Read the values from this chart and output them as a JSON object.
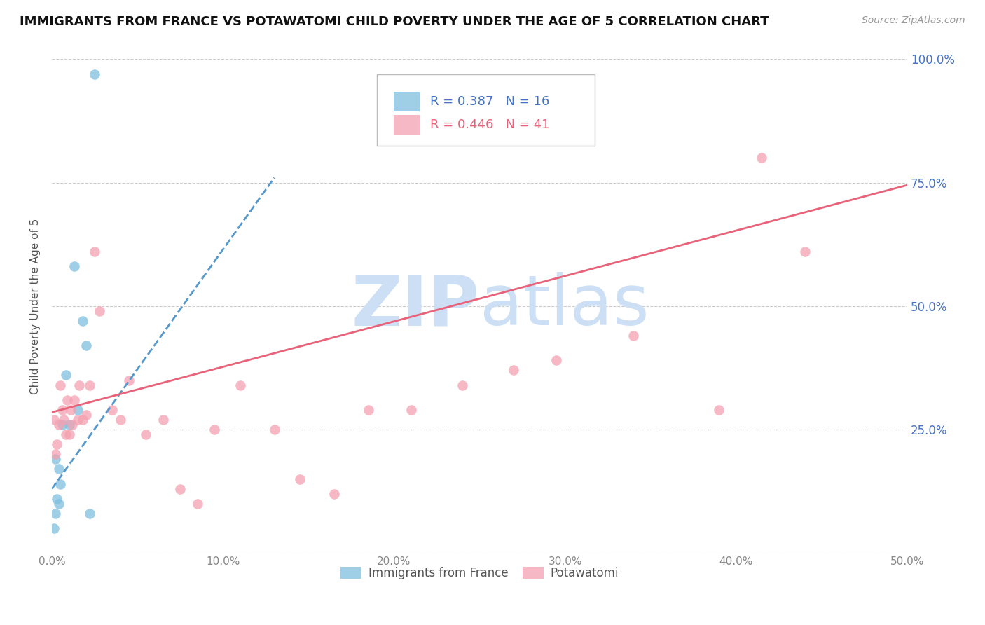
{
  "title": "IMMIGRANTS FROM FRANCE VS POTAWATOMI CHILD POVERTY UNDER THE AGE OF 5 CORRELATION CHART",
  "source": "Source: ZipAtlas.com",
  "ylabel": "Child Poverty Under the Age of 5",
  "xlim": [
    0.0,
    0.5
  ],
  "ylim": [
    0.0,
    1.0
  ],
  "xticks": [
    0.0,
    0.1,
    0.2,
    0.3,
    0.4,
    0.5
  ],
  "xtick_labels": [
    "0.0%",
    "10.0%",
    "20.0%",
    "30.0%",
    "40.0%",
    "50.0%"
  ],
  "yticks": [
    0.0,
    0.25,
    0.5,
    0.75,
    1.0
  ],
  "ytick_labels_right": [
    "",
    "25.0%",
    "50.0%",
    "75.0%",
    "100.0%"
  ],
  "blue_color": "#7fbfdf",
  "pink_color": "#f4a0b0",
  "blue_line_color": "#5599cc",
  "pink_line_color": "#e8637a",
  "right_axis_color": "#4472c4",
  "legend_R_blue": "0.387",
  "legend_N_blue": "16",
  "legend_R_pink": "0.446",
  "legend_N_pink": "41",
  "legend_label_blue": "Immigrants from France",
  "legend_label_pink": "Potawatomi",
  "blue_scatter_x": [
    0.025,
    0.001,
    0.004,
    0.003,
    0.002,
    0.006,
    0.005,
    0.013,
    0.018,
    0.008,
    0.01,
    0.015,
    0.02,
    0.002,
    0.004,
    0.022
  ],
  "blue_scatter_y": [
    0.97,
    0.05,
    0.17,
    0.11,
    0.19,
    0.26,
    0.14,
    0.58,
    0.47,
    0.36,
    0.26,
    0.29,
    0.42,
    0.08,
    0.1,
    0.08
  ],
  "pink_scatter_x": [
    0.001,
    0.002,
    0.003,
    0.004,
    0.005,
    0.006,
    0.007,
    0.008,
    0.009,
    0.01,
    0.011,
    0.012,
    0.013,
    0.015,
    0.016,
    0.018,
    0.02,
    0.022,
    0.025,
    0.028,
    0.035,
    0.04,
    0.045,
    0.055,
    0.065,
    0.075,
    0.085,
    0.095,
    0.11,
    0.13,
    0.145,
    0.165,
    0.185,
    0.21,
    0.24,
    0.27,
    0.295,
    0.34,
    0.39,
    0.415,
    0.44
  ],
  "pink_scatter_y": [
    0.27,
    0.2,
    0.22,
    0.26,
    0.34,
    0.29,
    0.27,
    0.24,
    0.31,
    0.24,
    0.29,
    0.26,
    0.31,
    0.27,
    0.34,
    0.27,
    0.28,
    0.34,
    0.61,
    0.49,
    0.29,
    0.27,
    0.35,
    0.24,
    0.27,
    0.13,
    0.1,
    0.25,
    0.34,
    0.25,
    0.15,
    0.12,
    0.29,
    0.29,
    0.34,
    0.37,
    0.39,
    0.44,
    0.29,
    0.8,
    0.61
  ],
  "blue_line_x0": 0.0,
  "blue_line_x1": 0.13,
  "blue_line_y0": 0.13,
  "blue_line_y1": 0.76,
  "pink_line_x0": 0.0,
  "pink_line_x1": 0.5,
  "pink_line_y0": 0.285,
  "pink_line_y1": 0.745,
  "watermark_zip": "ZIP",
  "watermark_atlas": "atlas",
  "watermark_color": "#ccdff5",
  "background_color": "#ffffff",
  "grid_color": "#cccccc",
  "title_fontsize": 13,
  "source_fontsize": 10
}
